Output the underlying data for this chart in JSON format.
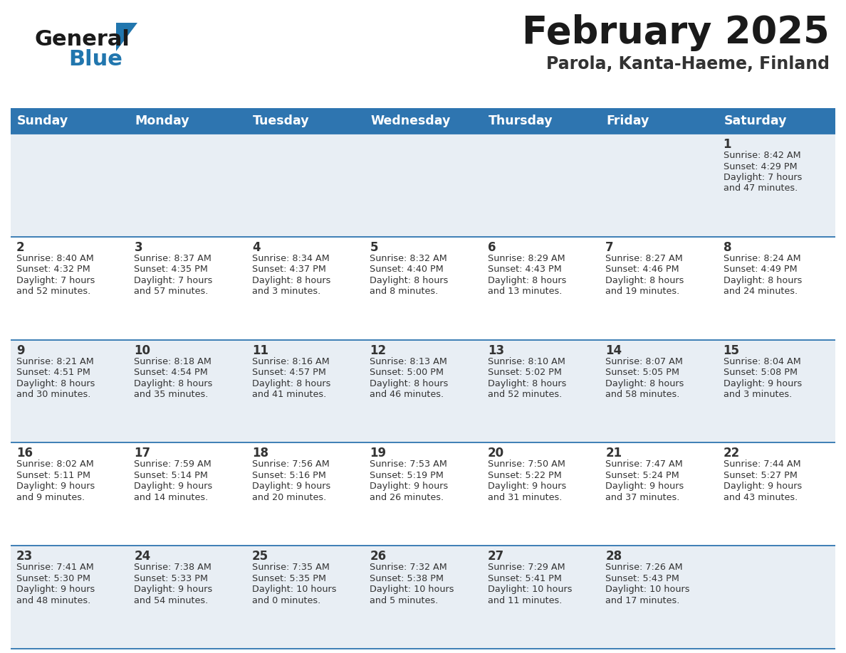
{
  "title": "February 2025",
  "subtitle": "Parola, Kanta-Haeme, Finland",
  "days_of_week": [
    "Sunday",
    "Monday",
    "Tuesday",
    "Wednesday",
    "Thursday",
    "Friday",
    "Saturday"
  ],
  "header_bg": "#2e75b0",
  "header_text": "#ffffff",
  "cell_bg_row0": "#e8eef4",
  "cell_bg_row1": "#ffffff",
  "cell_bg_row2": "#e8eef4",
  "cell_bg_row3": "#ffffff",
  "cell_bg_row4": "#e8eef4",
  "cell_text": "#333333",
  "date_text": "#333333",
  "border_color": "#2e75b0",
  "title_color": "#1a1a1a",
  "subtitle_color": "#333333",
  "logo_general_color": "#1a1a1a",
  "logo_blue_color": "#2176ae",
  "weeks": [
    [
      null,
      null,
      null,
      null,
      null,
      null,
      {
        "day": 1,
        "sunrise": "8:42 AM",
        "sunset": "4:29 PM",
        "daylight": "7 hours",
        "daylight2": "and 47 minutes."
      }
    ],
    [
      {
        "day": 2,
        "sunrise": "8:40 AM",
        "sunset": "4:32 PM",
        "daylight": "7 hours",
        "daylight2": "and 52 minutes."
      },
      {
        "day": 3,
        "sunrise": "8:37 AM",
        "sunset": "4:35 PM",
        "daylight": "7 hours",
        "daylight2": "and 57 minutes."
      },
      {
        "day": 4,
        "sunrise": "8:34 AM",
        "sunset": "4:37 PM",
        "daylight": "8 hours",
        "daylight2": "and 3 minutes."
      },
      {
        "day": 5,
        "sunrise": "8:32 AM",
        "sunset": "4:40 PM",
        "daylight": "8 hours",
        "daylight2": "and 8 minutes."
      },
      {
        "day": 6,
        "sunrise": "8:29 AM",
        "sunset": "4:43 PM",
        "daylight": "8 hours",
        "daylight2": "and 13 minutes."
      },
      {
        "day": 7,
        "sunrise": "8:27 AM",
        "sunset": "4:46 PM",
        "daylight": "8 hours",
        "daylight2": "and 19 minutes."
      },
      {
        "day": 8,
        "sunrise": "8:24 AM",
        "sunset": "4:49 PM",
        "daylight": "8 hours",
        "daylight2": "and 24 minutes."
      }
    ],
    [
      {
        "day": 9,
        "sunrise": "8:21 AM",
        "sunset": "4:51 PM",
        "daylight": "8 hours",
        "daylight2": "and 30 minutes."
      },
      {
        "day": 10,
        "sunrise": "8:18 AM",
        "sunset": "4:54 PM",
        "daylight": "8 hours",
        "daylight2": "and 35 minutes."
      },
      {
        "day": 11,
        "sunrise": "8:16 AM",
        "sunset": "4:57 PM",
        "daylight": "8 hours",
        "daylight2": "and 41 minutes."
      },
      {
        "day": 12,
        "sunrise": "8:13 AM",
        "sunset": "5:00 PM",
        "daylight": "8 hours",
        "daylight2": "and 46 minutes."
      },
      {
        "day": 13,
        "sunrise": "8:10 AM",
        "sunset": "5:02 PM",
        "daylight": "8 hours",
        "daylight2": "and 52 minutes."
      },
      {
        "day": 14,
        "sunrise": "8:07 AM",
        "sunset": "5:05 PM",
        "daylight": "8 hours",
        "daylight2": "and 58 minutes."
      },
      {
        "day": 15,
        "sunrise": "8:04 AM",
        "sunset": "5:08 PM",
        "daylight": "9 hours",
        "daylight2": "and 3 minutes."
      }
    ],
    [
      {
        "day": 16,
        "sunrise": "8:02 AM",
        "sunset": "5:11 PM",
        "daylight": "9 hours",
        "daylight2": "and 9 minutes."
      },
      {
        "day": 17,
        "sunrise": "7:59 AM",
        "sunset": "5:14 PM",
        "daylight": "9 hours",
        "daylight2": "and 14 minutes."
      },
      {
        "day": 18,
        "sunrise": "7:56 AM",
        "sunset": "5:16 PM",
        "daylight": "9 hours",
        "daylight2": "and 20 minutes."
      },
      {
        "day": 19,
        "sunrise": "7:53 AM",
        "sunset": "5:19 PM",
        "daylight": "9 hours",
        "daylight2": "and 26 minutes."
      },
      {
        "day": 20,
        "sunrise": "7:50 AM",
        "sunset": "5:22 PM",
        "daylight": "9 hours",
        "daylight2": "and 31 minutes."
      },
      {
        "day": 21,
        "sunrise": "7:47 AM",
        "sunset": "5:24 PM",
        "daylight": "9 hours",
        "daylight2": "and 37 minutes."
      },
      {
        "day": 22,
        "sunrise": "7:44 AM",
        "sunset": "5:27 PM",
        "daylight": "9 hours",
        "daylight2": "and 43 minutes."
      }
    ],
    [
      {
        "day": 23,
        "sunrise": "7:41 AM",
        "sunset": "5:30 PM",
        "daylight": "9 hours",
        "daylight2": "and 48 minutes."
      },
      {
        "day": 24,
        "sunrise": "7:38 AM",
        "sunset": "5:33 PM",
        "daylight": "9 hours",
        "daylight2": "and 54 minutes."
      },
      {
        "day": 25,
        "sunrise": "7:35 AM",
        "sunset": "5:35 PM",
        "daylight": "10 hours",
        "daylight2": "and 0 minutes."
      },
      {
        "day": 26,
        "sunrise": "7:32 AM",
        "sunset": "5:38 PM",
        "daylight": "10 hours",
        "daylight2": "and 5 minutes."
      },
      {
        "day": 27,
        "sunrise": "7:29 AM",
        "sunset": "5:41 PM",
        "daylight": "10 hours",
        "daylight2": "and 11 minutes."
      },
      {
        "day": 28,
        "sunrise": "7:26 AM",
        "sunset": "5:43 PM",
        "daylight": "10 hours",
        "daylight2": "and 17 minutes."
      },
      null
    ]
  ],
  "row_bgs": [
    "#e8eef4",
    "#ffffff",
    "#e8eef4",
    "#ffffff",
    "#e8eef4"
  ]
}
